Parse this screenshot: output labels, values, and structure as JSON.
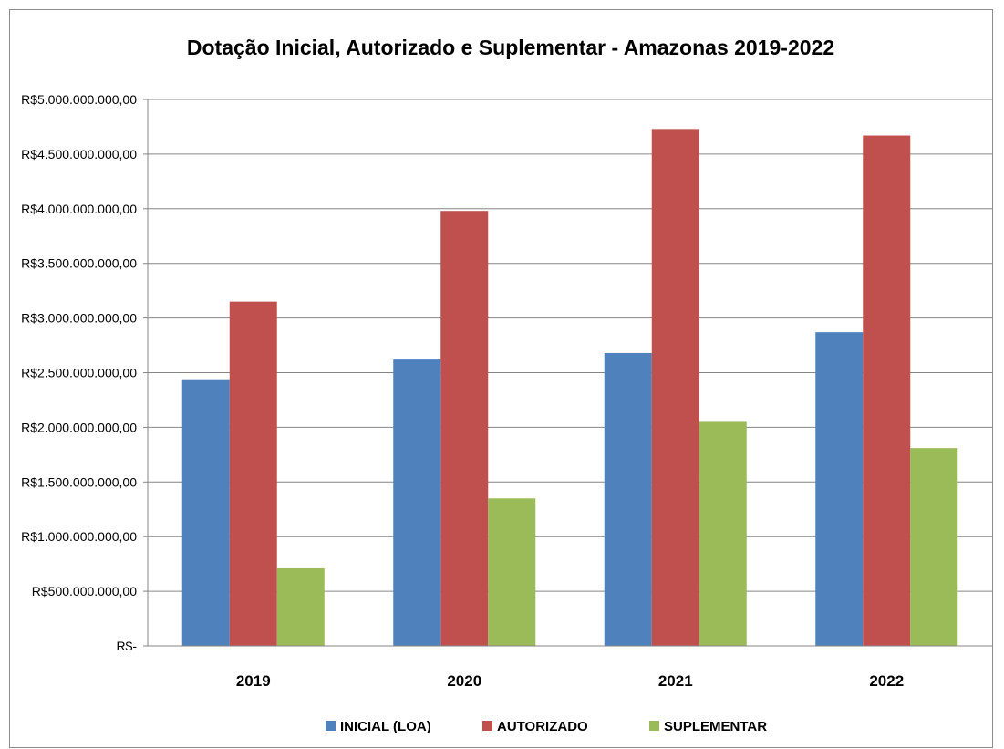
{
  "chart_data": {
    "type": "bar",
    "title": "Dotação Inicial, Autorizado e Suplementar - Amazonas 2019-2022",
    "xlabel": "",
    "ylabel": "",
    "categories": [
      "2019",
      "2020",
      "2021",
      "2022"
    ],
    "series": [
      {
        "name": "INICIAL (LOA)",
        "color": "#4f81bd",
        "values": [
          2440000000,
          2620000000,
          2680000000,
          2870000000
        ]
      },
      {
        "name": "AUTORIZADO",
        "color": "#c0504d",
        "values": [
          3150000000,
          3980000000,
          4730000000,
          4670000000
        ]
      },
      {
        "name": "SUPLEMENTAR",
        "color": "#9bbb59",
        "values": [
          710000000,
          1350000000,
          2050000000,
          1810000000
        ]
      }
    ],
    "ylim": [
      0,
      5000000000
    ],
    "yticks": [
      {
        "value": 0,
        "label": "R$-"
      },
      {
        "value": 500000000,
        "label": "R$500.000.000,00"
      },
      {
        "value": 1000000000,
        "label": "R$1.000.000.000,00"
      },
      {
        "value": 1500000000,
        "label": "R$1.500.000.000,00"
      },
      {
        "value": 2000000000,
        "label": "R$2.000.000.000,00"
      },
      {
        "value": 2500000000,
        "label": "R$2.500.000.000,00"
      },
      {
        "value": 3000000000,
        "label": "R$3.000.000.000,00"
      },
      {
        "value": 3500000000,
        "label": "R$3.500.000.000,00"
      },
      {
        "value": 4000000000,
        "label": "R$4.000.000.000,00"
      },
      {
        "value": 4500000000,
        "label": "R$4.500.000.000,00"
      },
      {
        "value": 5000000000,
        "label": "R$5.000.000.000,00"
      }
    ],
    "grid": true,
    "legend_position": "bottom",
    "gridline_color": "#868686"
  }
}
